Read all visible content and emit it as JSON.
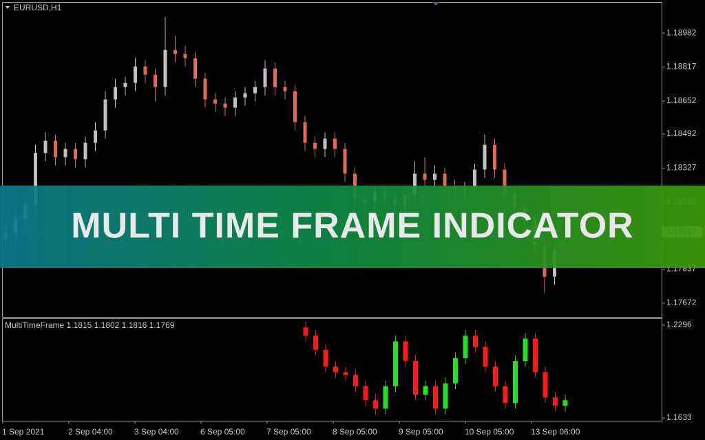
{
  "chart_data": [
    {
      "type": "candlestick",
      "title": "EURUSD,H1",
      "open": [
        1.1799,
        1.1801,
        1.1808,
        1.1815,
        1.184,
        1.1846,
        1.1838,
        1.1842,
        1.1837,
        1.1845,
        1.1851,
        1.1866,
        1.1872,
        1.1874,
        1.1882,
        1.1878,
        1.1872,
        1.189,
        1.1888,
        1.1886,
        1.1876,
        1.1866,
        1.1864,
        1.1862,
        1.1867,
        1.1869,
        1.1872,
        1.1881,
        1.1872,
        1.187,
        1.1855,
        1.1845,
        1.1842,
        1.1847,
        1.1842,
        1.183,
        1.1818,
        1.1816,
        1.1821,
        1.1818,
        1.1815,
        1.182,
        1.183,
        1.1827,
        1.183,
        1.1824,
        1.1822,
        1.1823,
        1.1832,
        1.1844,
        1.1832,
        1.182,
        1.1814,
        1.1808,
        1.1795,
        1.178
      ],
      "high": [
        1.1805,
        1.1812,
        1.1819,
        1.1844,
        1.185,
        1.1849,
        1.1845,
        1.1845,
        1.1848,
        1.1855,
        1.187,
        1.1876,
        1.1877,
        1.1886,
        1.1885,
        1.1881,
        1.1906,
        1.1897,
        1.1892,
        1.1889,
        1.1879,
        1.1869,
        1.1867,
        1.187,
        1.1872,
        1.1875,
        1.1885,
        1.1884,
        1.1875,
        1.1873,
        1.1858,
        1.1848,
        1.185,
        1.185,
        1.1845,
        1.1833,
        1.1821,
        1.1824,
        1.1824,
        1.1821,
        1.1823,
        1.1836,
        1.1838,
        1.1834,
        1.1833,
        1.1827,
        1.1826,
        1.1835,
        1.1849,
        1.1847,
        1.1835,
        1.1823,
        1.1817,
        1.1811,
        1.1798,
        1.1796
      ],
      "low": [
        1.1795,
        1.1797,
        1.1804,
        1.1811,
        1.1836,
        1.1834,
        1.1834,
        1.1833,
        1.1833,
        1.1841,
        1.1847,
        1.1862,
        1.1868,
        1.187,
        1.1874,
        1.1865,
        1.1868,
        1.1884,
        1.1882,
        1.1872,
        1.1862,
        1.186,
        1.1858,
        1.1858,
        1.1863,
        1.1865,
        1.1868,
        1.1868,
        1.1866,
        1.1851,
        1.1841,
        1.1838,
        1.1838,
        1.1838,
        1.1826,
        1.1814,
        1.1812,
        1.1812,
        1.1814,
        1.1811,
        1.1811,
        1.1816,
        1.1823,
        1.1823,
        1.182,
        1.1818,
        1.1818,
        1.1819,
        1.1828,
        1.1828,
        1.1816,
        1.181,
        1.1804,
        1.1791,
        1.1772,
        1.1776
      ],
      "close": [
        1.1801,
        1.1808,
        1.1815,
        1.184,
        1.1846,
        1.1838,
        1.1842,
        1.1837,
        1.1845,
        1.1851,
        1.1866,
        1.1872,
        1.1874,
        1.1882,
        1.1878,
        1.1872,
        1.189,
        1.1888,
        1.1886,
        1.1876,
        1.1866,
        1.1864,
        1.1862,
        1.1867,
        1.1869,
        1.1872,
        1.1881,
        1.1872,
        1.187,
        1.1855,
        1.1845,
        1.1842,
        1.1847,
        1.1842,
        1.183,
        1.1818,
        1.1816,
        1.1821,
        1.1818,
        1.1815,
        1.182,
        1.183,
        1.1827,
        1.183,
        1.1824,
        1.1822,
        1.1823,
        1.1832,
        1.1844,
        1.1832,
        1.182,
        1.1814,
        1.1808,
        1.1795,
        1.178,
        1.1793
      ],
      "up_color": "#c0c0c0",
      "down_color": "#e06a52",
      "ylim": [
        1.17605,
        1.19129
      ],
      "yticks": [
        1.18982,
        1.18817,
        1.18652,
        1.18492,
        1.18327,
        1.18162,
        1.17837,
        1.17672
      ],
      "current_price": 1.18017
    },
    {
      "type": "candlestick",
      "title": "MultiTimeFrame 1.1815 1.1802 1.1816 1.1769",
      "open": [
        1.228,
        1.222,
        1.212,
        1.2,
        1.196,
        1.194,
        1.186,
        1.176,
        1.17,
        1.186,
        1.218,
        1.204,
        1.18,
        1.186,
        1.17,
        1.188,
        1.206,
        1.222,
        1.214,
        1.2,
        1.186,
        1.174,
        1.204,
        1.22,
        1.196,
        1.178,
        1.172
      ],
      "high": [
        1.232,
        1.226,
        1.216,
        1.204,
        1.2,
        1.198,
        1.19,
        1.18,
        1.19,
        1.222,
        1.222,
        1.208,
        1.19,
        1.19,
        1.192,
        1.21,
        1.226,
        1.226,
        1.218,
        1.204,
        1.19,
        1.208,
        1.224,
        1.224,
        1.2,
        1.182,
        1.18
      ],
      "low": [
        1.218,
        1.208,
        1.196,
        1.192,
        1.19,
        1.182,
        1.172,
        1.166,
        1.166,
        1.182,
        1.2,
        1.176,
        1.176,
        1.166,
        1.166,
        1.184,
        1.202,
        1.21,
        1.196,
        1.182,
        1.17,
        1.17,
        1.2,
        1.192,
        1.174,
        1.168,
        1.168
      ],
      "close": [
        1.222,
        1.212,
        1.2,
        1.196,
        1.194,
        1.186,
        1.176,
        1.17,
        1.186,
        1.218,
        1.204,
        1.18,
        1.186,
        1.17,
        1.188,
        1.206,
        1.222,
        1.214,
        1.2,
        1.186,
        1.174,
        1.204,
        1.22,
        1.196,
        1.178,
        1.172,
        1.176
      ],
      "up_color": "#22e022",
      "down_color": "#ff1a1a",
      "ylim": [
        1.16135,
        1.23399
      ],
      "yticks": [
        1.2296,
        1.1633
      ]
    }
  ],
  "time_axis": [
    "1 Sep 2021",
    "2 Sep 04:00",
    "3 Sep 04:00",
    "6 Sep 05:00",
    "7 Sep 05:00",
    "8 Sep 05:00",
    "9 Sep 05:00",
    "10 Sep 05:00",
    "13 Sep 06:00"
  ],
  "banner": "MULTI TIME FRAME INDICATOR"
}
